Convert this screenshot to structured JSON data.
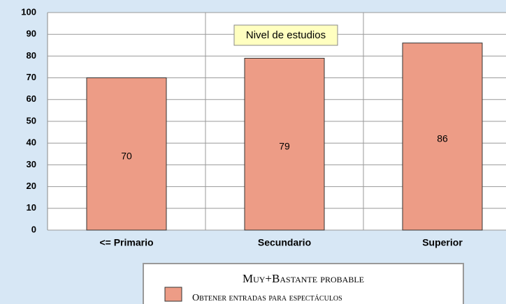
{
  "chart_data": {
    "type": "bar",
    "title": "Nivel de estudios",
    "categories": [
      "<= Primario",
      "Secundario",
      "Superior"
    ],
    "series": [
      {
        "name": "Obtener entradas para espectáculos",
        "color": "#ed9c86",
        "values": [
          70,
          79,
          86
        ]
      }
    ],
    "legend_title": "Muy+Bastante probable",
    "ylim": [
      0,
      100
    ],
    "yticks": [
      0,
      10,
      20,
      30,
      40,
      50,
      60,
      70,
      80,
      90,
      100
    ],
    "grid": true
  }
}
